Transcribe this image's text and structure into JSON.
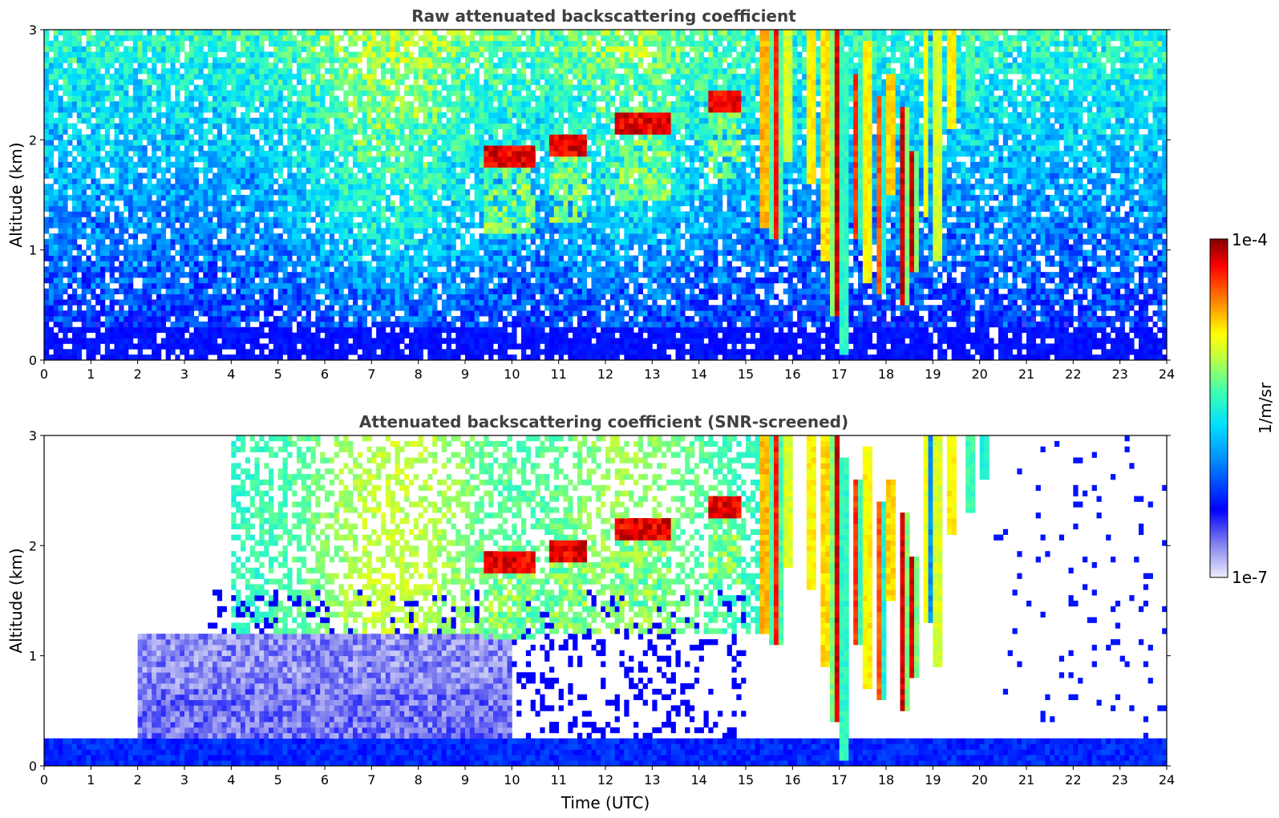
{
  "chart_data": [
    {
      "type": "heatmap",
      "title": "Raw attenuated backscattering coefficient",
      "xlabel": "",
      "ylabel": "Altitude (km)",
      "xlim": [
        0,
        24
      ],
      "ylim": [
        0,
        3
      ],
      "x_ticks": [
        "0",
        "1",
        "2",
        "3",
        "4",
        "5",
        "6",
        "7",
        "8",
        "9",
        "10",
        "11",
        "12",
        "13",
        "14",
        "15",
        "16",
        "17",
        "18",
        "19",
        "20",
        "21",
        "22",
        "23",
        "24"
      ],
      "y_ticks": [
        "0",
        "1",
        "2",
        "3"
      ],
      "color_scale": "log",
      "colormap": "jet",
      "features": [
        {
          "kind": "boundary-layer",
          "x": [
            0,
            24
          ],
          "top_km": 0.3
        },
        {
          "kind": "cloud-base",
          "x": [
            9.4,
            10.5
          ],
          "altitude_km": 1.85
        },
        {
          "kind": "cloud-base",
          "x": [
            10.8,
            11.6
          ],
          "altitude_km": 1.95
        },
        {
          "kind": "cloud-base",
          "x": [
            12.2,
            13.4
          ],
          "altitude_km": 2.15
        },
        {
          "kind": "cloud-base",
          "x": [
            14.2,
            14.9
          ],
          "altitude_km": 2.35
        },
        {
          "kind": "precipitating-cloud",
          "x": [
            15.3,
            20.2
          ],
          "altitude_km": [
            0.1,
            3.0
          ]
        }
      ]
    },
    {
      "type": "heatmap",
      "title": "Attenuated backscattering coefficient (SNR-screened)",
      "xlabel": "Time (UTC)",
      "ylabel": "Altitude (km)",
      "xlim": [
        0,
        24
      ],
      "ylim": [
        0,
        3
      ],
      "x_ticks": [
        "0",
        "1",
        "2",
        "3",
        "4",
        "5",
        "6",
        "7",
        "8",
        "9",
        "10",
        "11",
        "12",
        "13",
        "14",
        "15",
        "16",
        "17",
        "18",
        "19",
        "20",
        "21",
        "22",
        "23",
        "24"
      ],
      "y_ticks": [
        "0",
        "1",
        "2",
        "3"
      ],
      "color_scale": "log",
      "colormap": "jet",
      "features": [
        {
          "kind": "boundary-layer",
          "x": [
            0,
            24
          ],
          "top_km": 0.25
        },
        {
          "kind": "residual-layer",
          "x": [
            2,
            10
          ],
          "top_km": 1.2
        },
        {
          "kind": "cloud-base",
          "x": [
            9.4,
            10.5
          ],
          "altitude_km": 1.9
        },
        {
          "kind": "cloud-base",
          "x": [
            10.8,
            11.6
          ],
          "altitude_km": 2.0
        },
        {
          "kind": "cloud-base",
          "x": [
            12.2,
            13.4
          ],
          "altitude_km": 2.2
        },
        {
          "kind": "precipitating-cloud",
          "x": [
            15.3,
            20.2
          ],
          "altitude_km": [
            0.1,
            3.0
          ]
        }
      ]
    }
  ],
  "colorbar": {
    "label": "1/m/sr",
    "max_label": "1e-4",
    "min_label": "1e-7",
    "range": [
      1e-07,
      0.0001
    ],
    "scale": "log"
  }
}
